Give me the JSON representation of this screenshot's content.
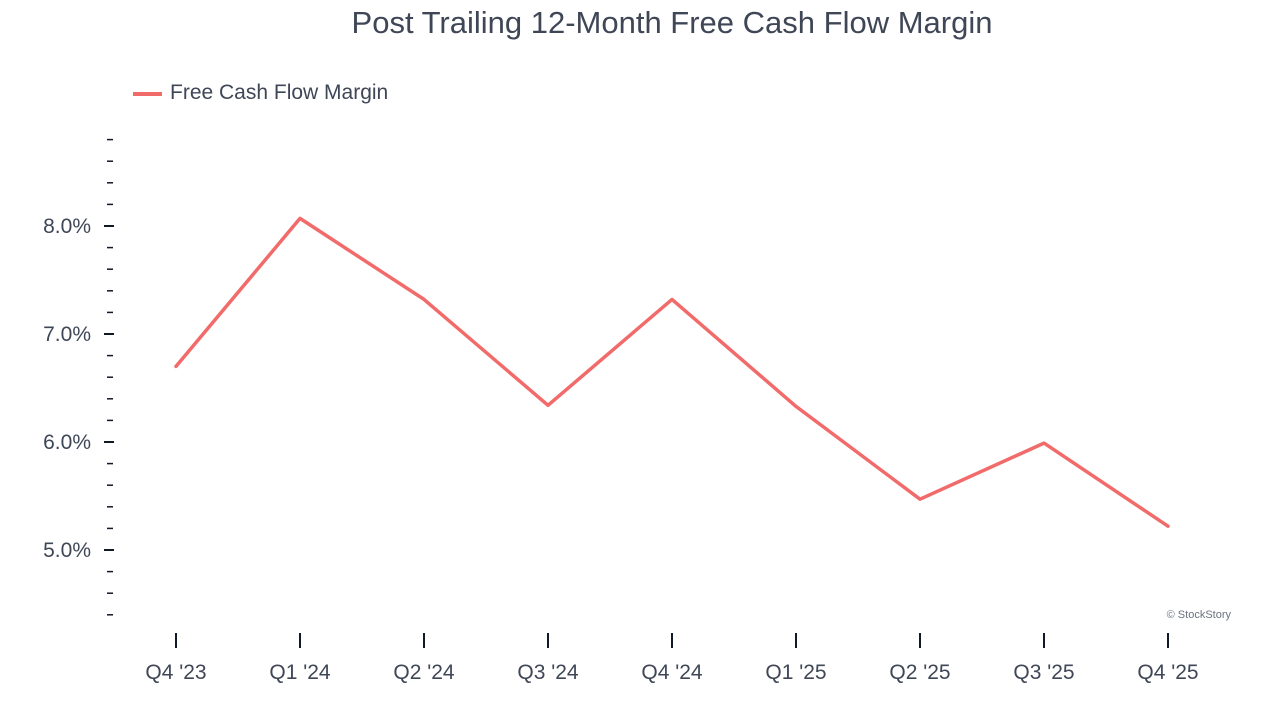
{
  "chart_data": {
    "type": "line",
    "title": "Post Trailing 12-Month Free Cash Flow Margin",
    "xlabel": "",
    "ylabel": "",
    "categories": [
      "Q4 '23",
      "Q1 '24",
      "Q2 '24",
      "Q3 '24",
      "Q4 '24",
      "Q1 '25",
      "Q2 '25",
      "Q3 '25",
      "Q4 '25"
    ],
    "series": [
      {
        "name": "Free Cash Flow Margin",
        "color": "#f26b6b",
        "values": [
          6.7,
          8.07,
          7.32,
          6.34,
          7.32,
          6.33,
          5.47,
          5.99,
          5.22
        ]
      }
    ],
    "ylim": [
      4.3,
      8.9
    ],
    "yticks": [
      5.0,
      6.0,
      7.0,
      8.0
    ],
    "ytick_labels": [
      "5.0%",
      "6.0%",
      "7.0%",
      "8.0%"
    ],
    "y_minor_step": 0.2,
    "grid": false,
    "legend_position": "top-left"
  },
  "credit": "© StockStory"
}
